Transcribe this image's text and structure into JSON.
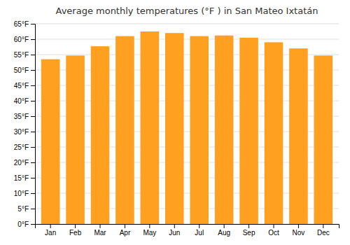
{
  "chart_data": {
    "type": "bar",
    "title": "Average monthly temperatures (°F ) in San Mateo Ixtatán",
    "categories": [
      "Jan",
      "Feb",
      "Mar",
      "Apr",
      "May",
      "Jun",
      "Jul",
      "Aug",
      "Sep",
      "Oct",
      "Nov",
      "Dec"
    ],
    "values": [
      53.5,
      54.7,
      57.7,
      61.0,
      62.5,
      62.0,
      61.0,
      61.2,
      60.5,
      59.0,
      57.0,
      54.7
    ],
    "color": "#FFA020",
    "ylim": [
      0,
      65
    ],
    "yticks": [
      {
        "value": 0,
        "label": "0°F"
      },
      {
        "value": 5,
        "label": "5°F"
      },
      {
        "value": 10,
        "label": "10°F"
      },
      {
        "value": 15,
        "label": "15°F"
      },
      {
        "value": 20,
        "label": "20°F"
      },
      {
        "value": 25,
        "label": "25°F"
      },
      {
        "value": 30,
        "label": "30°F"
      },
      {
        "value": 35,
        "label": "35°F"
      },
      {
        "value": 40,
        "label": "40°F"
      },
      {
        "value": 45,
        "label": "45°F"
      },
      {
        "value": 50,
        "label": "50°F"
      },
      {
        "value": 55,
        "label": "55°F"
      },
      {
        "value": 60,
        "label": "60°F"
      },
      {
        "value": 65,
        "label": "65°F"
      }
    ],
    "grid": true
  }
}
